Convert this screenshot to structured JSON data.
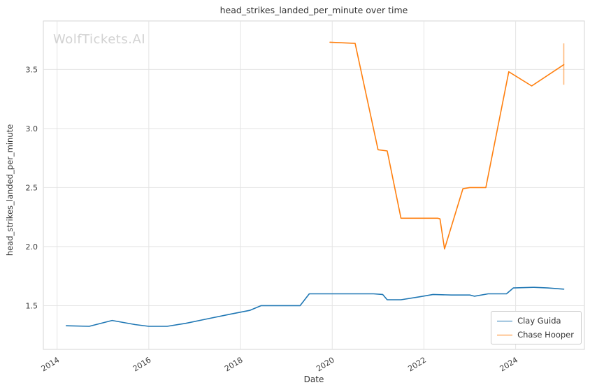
{
  "watermark": "WolfTickets.AI",
  "chart_data": {
    "type": "line",
    "title": "head_strikes_landed_per_minute over time",
    "xlabel": "Date",
    "ylabel": "head_strikes_landed_per_minute",
    "xlim": [
      2013.7,
      2025.5
    ],
    "ylim": [
      1.13,
      3.91
    ],
    "xticks": [
      2014,
      2016,
      2018,
      2020,
      2022,
      2024
    ],
    "yticks": [
      1.5,
      2.0,
      2.5,
      3.0,
      3.5
    ],
    "grid": true,
    "legend_position": "lower right",
    "series": [
      {
        "name": "Clay Guida",
        "color": "#1f77b4",
        "points": [
          [
            2014.2,
            1.33
          ],
          [
            2014.7,
            1.325
          ],
          [
            2015.2,
            1.375
          ],
          [
            2015.7,
            1.34
          ],
          [
            2016.0,
            1.325
          ],
          [
            2016.4,
            1.325
          ],
          [
            2016.8,
            1.35
          ],
          [
            2017.3,
            1.39
          ],
          [
            2017.8,
            1.43
          ],
          [
            2018.2,
            1.46
          ],
          [
            2018.45,
            1.5
          ],
          [
            2018.9,
            1.5
          ],
          [
            2019.3,
            1.5
          ],
          [
            2019.5,
            1.6
          ],
          [
            2019.9,
            1.6
          ],
          [
            2020.4,
            1.6
          ],
          [
            2020.9,
            1.6
          ],
          [
            2021.1,
            1.595
          ],
          [
            2021.2,
            1.55
          ],
          [
            2021.5,
            1.55
          ],
          [
            2021.9,
            1.575
          ],
          [
            2022.2,
            1.595
          ],
          [
            2022.6,
            1.59
          ],
          [
            2023.0,
            1.59
          ],
          [
            2023.1,
            1.58
          ],
          [
            2023.4,
            1.6
          ],
          [
            2023.8,
            1.6
          ],
          [
            2023.95,
            1.65
          ],
          [
            2024.4,
            1.655
          ],
          [
            2024.7,
            1.65
          ],
          [
            2025.05,
            1.64
          ]
        ]
      },
      {
        "name": "Chase Hooper",
        "color": "#ff7f0e",
        "points": [
          [
            2019.95,
            3.73
          ],
          [
            2020.5,
            3.72
          ],
          [
            2021.0,
            2.82
          ],
          [
            2021.2,
            2.81
          ],
          [
            2021.5,
            2.24
          ],
          [
            2022.0,
            2.24
          ],
          [
            2022.3,
            2.24
          ],
          [
            2022.35,
            2.235
          ],
          [
            2022.45,
            1.98
          ],
          [
            2022.85,
            2.49
          ],
          [
            2023.0,
            2.5
          ],
          [
            2023.35,
            2.5
          ],
          [
            2023.85,
            3.48
          ],
          [
            2024.35,
            3.36
          ],
          [
            2025.05,
            3.54
          ]
        ],
        "errorbar": {
          "x": 2025.05,
          "y1": 3.37,
          "y2": 3.72
        }
      }
    ]
  }
}
